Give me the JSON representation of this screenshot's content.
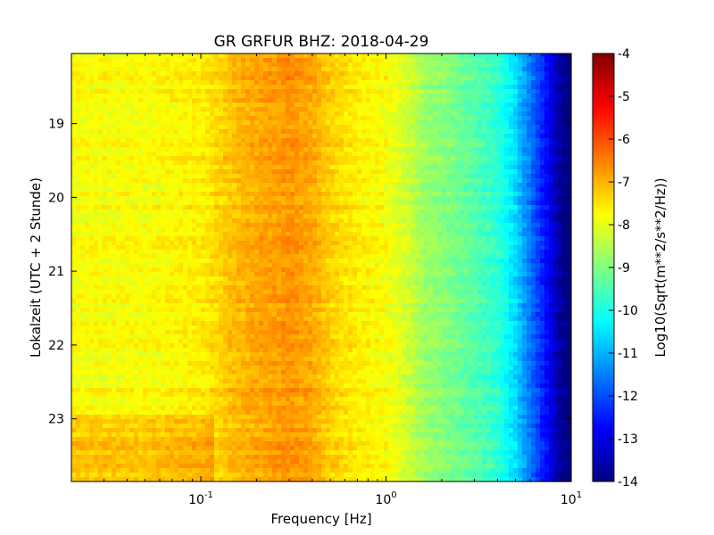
{
  "chart_data": {
    "type": "heatmap",
    "title": "GR GRFUR BHZ: 2018-04-29",
    "xlabel": "Frequency [Hz]",
    "ylabel": "Lokalzeit (UTC + 2 Stunde)",
    "x_scale": "log",
    "xlim": [
      0.02,
      10
    ],
    "x_ticks": [
      {
        "value": 0.1,
        "base": "10",
        "exp": "-1"
      },
      {
        "value": 1,
        "base": "10",
        "exp": "0"
      },
      {
        "value": 10,
        "base": "10",
        "exp": "1"
      }
    ],
    "ylim": [
      18.05,
      23.85
    ],
    "y_ticks": [
      "19",
      "20",
      "21",
      "22",
      "23"
    ],
    "colorbar": {
      "label": "Log10(Sqrt(m**2/s**2/Hz))",
      "colormap": "jet",
      "range": [
        -14,
        -4
      ],
      "ticks": [
        "-4",
        "-5",
        "-6",
        "-7",
        "-8",
        "-9",
        "-10",
        "-11",
        "-12",
        "-13",
        "-14"
      ]
    },
    "spectrum_profile": {
      "frequency_hz": [
        0.02,
        0.05,
        0.1,
        0.12,
        0.15,
        0.2,
        0.25,
        0.3,
        0.4,
        0.5,
        0.7,
        1.0,
        1.3,
        1.6,
        2.0,
        3.0,
        4.0,
        5.0,
        6.0,
        7.0,
        8.0,
        9.0,
        10.0
      ],
      "log10_amplitude": [
        -7.8,
        -7.8,
        -7.6,
        -7.4,
        -7.1,
        -6.9,
        -6.8,
        -6.7,
        -6.9,
        -7.3,
        -7.6,
        -7.8,
        -8.2,
        -8.7,
        -8.9,
        -9.4,
        -9.8,
        -10.6,
        -11.6,
        -12.4,
        -13.2,
        -13.9,
        -14.0
      ]
    },
    "time_variation": [
      {
        "hour_from": 22.9,
        "hour_to": 23.85,
        "freq_max_hz": 0.12,
        "delta": 0.6
      }
    ]
  }
}
